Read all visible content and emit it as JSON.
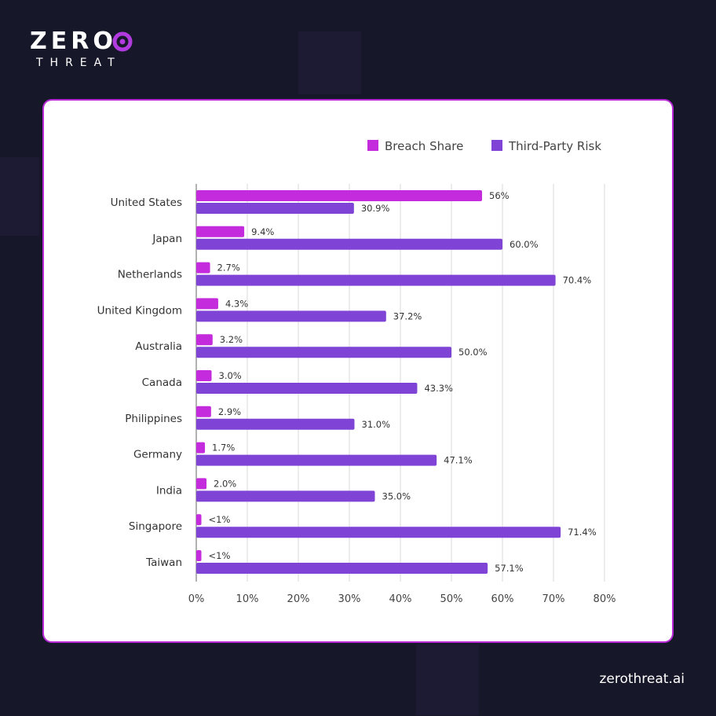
{
  "brand": {
    "logo_top": "ZERO",
    "logo_bottom": "THREAT",
    "website": "zerothreat.ai"
  },
  "colors": {
    "breach": "#c42bdc",
    "third_party": "#7f44d6",
    "background": "#17172a"
  },
  "chart_data": {
    "type": "bar",
    "orientation": "horizontal",
    "categories": [
      "United States",
      "Japan",
      "Netherlands",
      "United Kingdom",
      "Australia",
      "Canada",
      "Philippines",
      "Germany",
      "India",
      "Singapore",
      "Taiwan"
    ],
    "series": [
      {
        "name": "Breach Share",
        "values": [
          56,
          9.4,
          2.7,
          4.3,
          3.2,
          3.0,
          2.9,
          1.7,
          2.0,
          1,
          1
        ],
        "labels": [
          "56%",
          "9.4%",
          "2.7%",
          "4.3%",
          "3.2%",
          "3.0%",
          "2.9%",
          "1.7%",
          "2.0%",
          "<1%",
          "<1%"
        ]
      },
      {
        "name": "Third-Party Risk",
        "values": [
          30.9,
          60.0,
          70.4,
          37.2,
          50.0,
          43.3,
          31.0,
          47.1,
          35.0,
          71.4,
          57.1
        ],
        "labels": [
          "30.9%",
          "60.0%",
          "70.4%",
          "37.2%",
          "50.0%",
          "43.3%",
          "31.0%",
          "47.1%",
          "35.0%",
          "71.4%",
          "57.1%"
        ]
      }
    ],
    "xticks": [
      "0%",
      "10%",
      "20%",
      "30%",
      "40%",
      "50%",
      "60%",
      "70%",
      "80%"
    ],
    "xlim": [
      0,
      80
    ],
    "grid": true,
    "legend": "top-right"
  }
}
